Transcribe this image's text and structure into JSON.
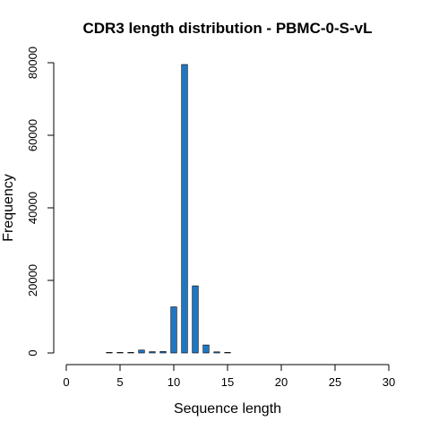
{
  "chart_data": {
    "type": "bar",
    "title": "CDR3 length distribution - PBMC-0-S-vL",
    "xlabel": "Sequence length",
    "ylabel": "Frequency",
    "xlim": [
      0,
      30
    ],
    "ylim": [
      0,
      80000
    ],
    "xticks": [
      0,
      5,
      10,
      15,
      20,
      25,
      30
    ],
    "yticks": [
      0,
      20000,
      40000,
      60000,
      80000
    ],
    "x": [
      4,
      5,
      6,
      7,
      8,
      9,
      10,
      11,
      12,
      13,
      14,
      15
    ],
    "values": [
      50,
      80,
      150,
      800,
      350,
      400,
      12700,
      79500,
      18500,
      2200,
      300,
      80
    ],
    "bar_color": "#1f77c4",
    "grid": false
  }
}
